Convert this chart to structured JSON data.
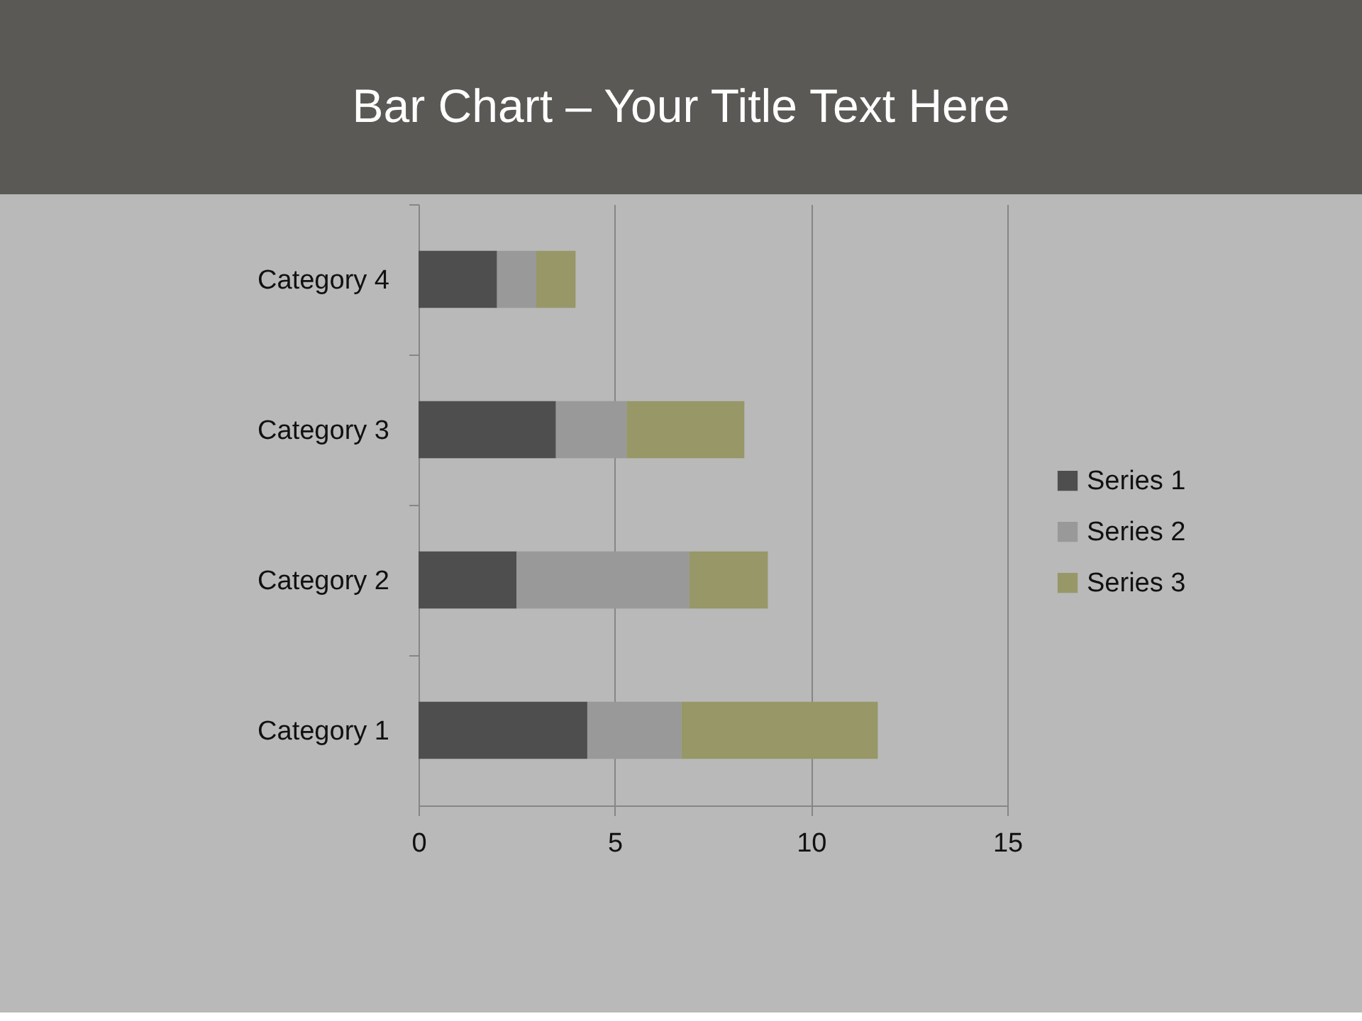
{
  "chart_data": {
    "type": "bar",
    "orientation": "horizontal",
    "stacked": true,
    "title": "Bar Chart – Your Title Text Here",
    "categories": [
      "Category 4",
      "Category 3",
      "Category 2",
      "Category 1"
    ],
    "series": [
      {
        "name": "Series 1",
        "color": "#4e4e4e",
        "values": [
          2,
          3.5,
          2.5,
          4.3
        ]
      },
      {
        "name": "Series 2",
        "color": "#999999",
        "values": [
          1,
          1.8,
          4.4,
          2.4
        ]
      },
      {
        "name": "Series 3",
        "color": "#979768",
        "values": [
          1,
          3,
          2,
          5
        ]
      }
    ],
    "xlim": [
      0,
      15
    ],
    "xticks": [
      0,
      5,
      10,
      15
    ],
    "grid": "x",
    "legend": "right"
  }
}
